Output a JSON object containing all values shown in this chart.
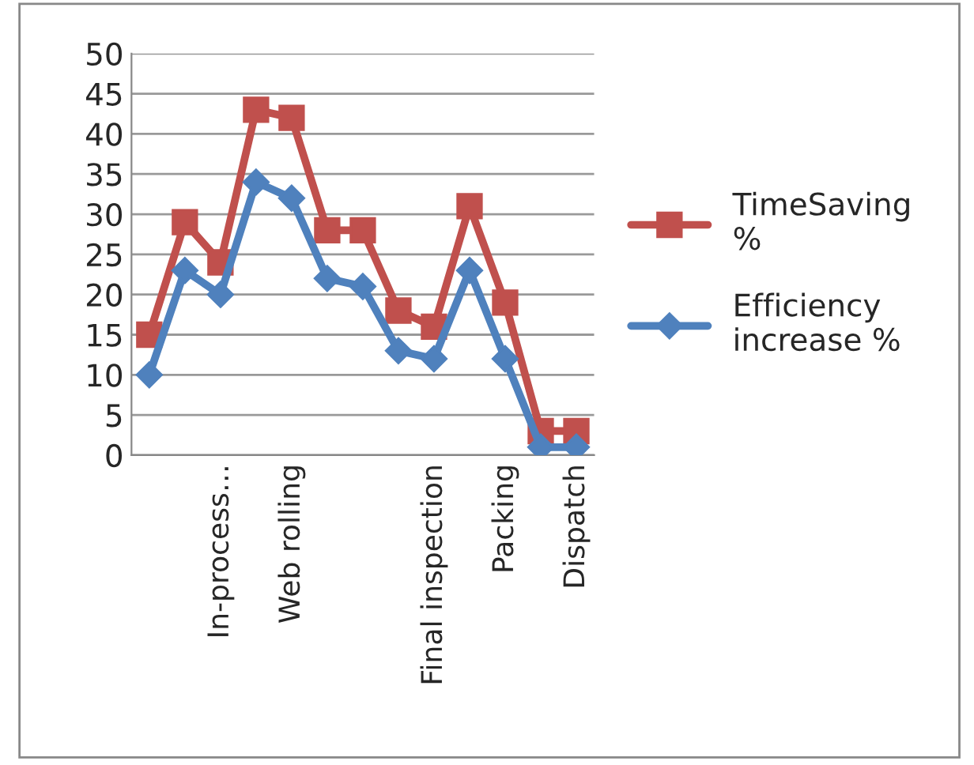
{
  "chart_data": {
    "type": "line",
    "categories": [
      null,
      null,
      "In-process…",
      null,
      "Web rolling",
      null,
      null,
      null,
      "Final inspection",
      null,
      "Packing",
      null,
      "Dispatch"
    ],
    "series": [
      {
        "name": "TimeSaving %",
        "color": "#c0504d",
        "marker": "square",
        "values": [
          15,
          29,
          24,
          43,
          42,
          28,
          28,
          18,
          16,
          31,
          19,
          3,
          3
        ]
      },
      {
        "name": "Efficiency increase %",
        "color": "#4f81bd",
        "marker": "diamond",
        "values": [
          10,
          23,
          20,
          34,
          32,
          22,
          21,
          13,
          12,
          23,
          12,
          1,
          1
        ]
      }
    ],
    "ylim": [
      0,
      50
    ],
    "yticks": [
      0,
      5,
      10,
      15,
      20,
      25,
      30,
      35,
      40,
      45,
      50
    ],
    "grid": "y",
    "legend": "right",
    "line_style": "solid"
  }
}
